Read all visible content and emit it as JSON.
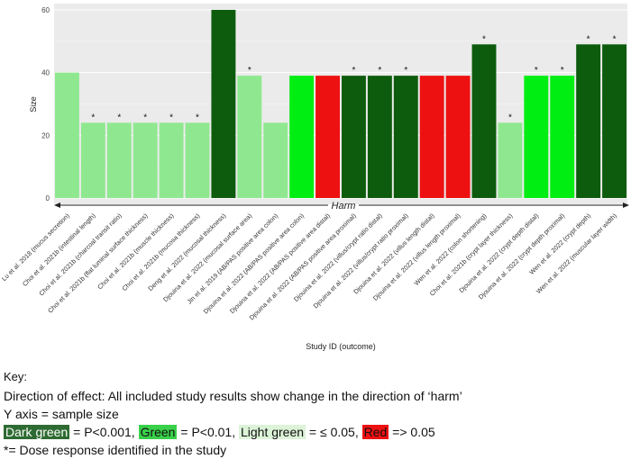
{
  "chart_data": {
    "type": "bar",
    "title": "",
    "xlabel": "Study ID (outcome)",
    "ylabel": "Size",
    "ylim": [
      0,
      62
    ],
    "yticks": [
      0,
      20,
      40,
      60
    ],
    "band_label": "Harm",
    "categories": [
      "Lu et al. 2018 (mucus secretion)",
      "Choi et al. 2021b (intestinal length)",
      "Choi et al. 2021b (charcoal transit ratio)",
      "Choi et al. 2021b (flat luminal surface thickness)",
      "Choi et al. 2021b (muscle thickness)",
      "Choi et al. 2021b (mucosa thickness)",
      "Deng et al. 2022 (mucosal thickness)",
      "Djouina et al. 2022 (mucosal surface area)",
      "Jin et al. 2019 (AB/PAS positive area colon)",
      "Djouina et al. 2022 (AB/PAS positive area colon)",
      "Djouina et al. 2022 (AB/PAS positive area distal)",
      "Djouina et al. 2022 (AB/PAS positive area proximal)",
      "Djouina et al. 2022 (villus/crypt ratio distal)",
      "Djouina et al. 2022 (villus/crypt ratio proximal)",
      "Djouina et al. 2022 (villus length distal)",
      "Djouina et al. 2022 (villus length proximal)",
      "Wen et al. 2022 (colon shortening)",
      "Choi et al. 2021b (crypt layer thickness)",
      "Djouina et al. 2022 (crypt depth distal)",
      "Djouina et al. 2022 (crypt depth proximal)",
      "Wen et al. 2022 (crypt depth)",
      "Wen et al. 2022 (muscular layer width)"
    ],
    "values": [
      40,
      24,
      24,
      24,
      24,
      24,
      60,
      39,
      24,
      39,
      39,
      39,
      39,
      39,
      39,
      39,
      49,
      24,
      39,
      39,
      49,
      49
    ],
    "significance": [
      "light",
      "light",
      "light",
      "light",
      "light",
      "light",
      "dark",
      "light",
      "light",
      "green",
      "red",
      "dark",
      "dark",
      "dark",
      "red",
      "red",
      "dark",
      "light",
      "green",
      "green",
      "dark",
      "dark"
    ],
    "dose_response": [
      false,
      true,
      true,
      true,
      true,
      true,
      false,
      true,
      false,
      false,
      false,
      true,
      true,
      true,
      false,
      false,
      true,
      true,
      true,
      true,
      true,
      true
    ],
    "colors": {
      "dark": "#0d5c0d",
      "green": "#00ee11",
      "light": "#8fe88f",
      "red": "#ee1111"
    },
    "marker": "*"
  },
  "key": {
    "title": "Key:",
    "direction": "Direction of effect: All included study results show change in the direction of ‘harm’",
    "y_axis_note": "Y axis = sample size",
    "dark_green_label": "Dark green",
    "dark_green_desc": " = P<0.001, ",
    "green_label": "Green",
    "green_desc": " = P<0.01, ",
    "light_green_label": "Light green",
    "light_green_desc": " = ≤ 0.05, ",
    "red_label": "Red",
    "red_desc": " => 0.05",
    "dose_note": "*= Dose response identified in the study"
  }
}
